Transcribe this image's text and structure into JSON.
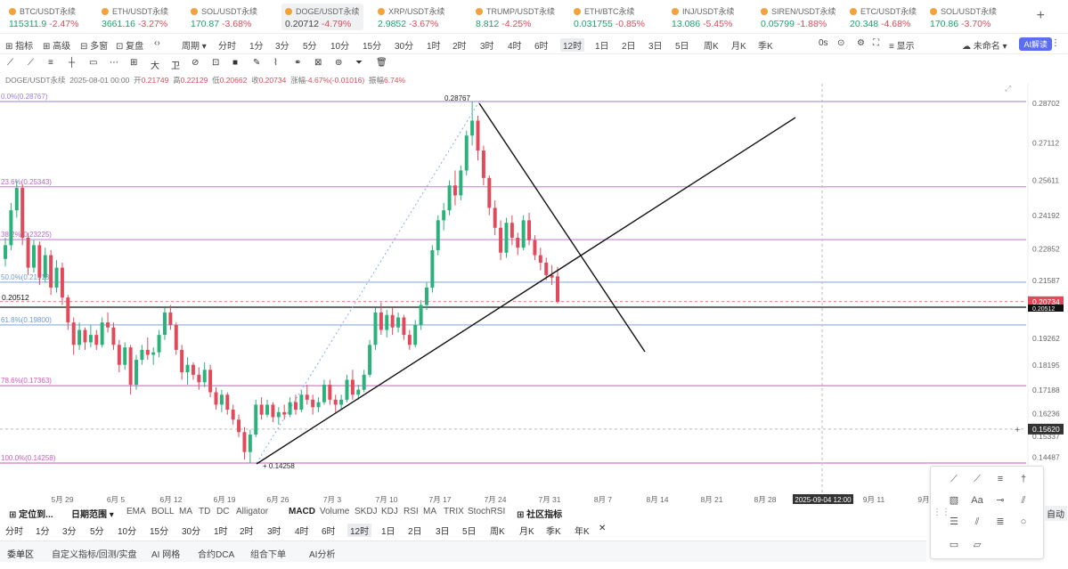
{
  "tickers": [
    {
      "name": "BTC/USDT永续",
      "price": "115311.9",
      "change": "-2.47%",
      "dir": "neg"
    },
    {
      "name": "ETH/USDT永续",
      "price": "3661.16",
      "change": "-3.27%",
      "dir": "neg"
    },
    {
      "name": "SOL/USDT永续",
      "price": "170.87",
      "change": "-3.68%",
      "dir": "neg"
    },
    {
      "name": "DOGE/USDT永续",
      "price": "0.20712",
      "change": "-4.79%",
      "dir": "neg",
      "active": true
    },
    {
      "name": "XRP/USDT永续",
      "price": "2.9852",
      "change": "-3.67%",
      "dir": "neg"
    },
    {
      "name": "TRUMP/USDT永续",
      "price": "8.812",
      "change": "-4.25%",
      "dir": "neg"
    },
    {
      "name": "ETH/BTC永续",
      "price": "0.031755",
      "change": "-0.85%",
      "dir": "neg"
    },
    {
      "name": "INJ/USDT永续",
      "price": "13.086",
      "change": "-5.45%",
      "dir": "neg"
    },
    {
      "name": "SIREN/USDT永续",
      "price": "0.05799",
      "change": "-1.88%",
      "dir": "neg"
    },
    {
      "name": "ETC/USDT永续",
      "price": "20.348",
      "change": "-4.68%",
      "dir": "neg"
    },
    {
      "name": "SOL/USDT永续",
      "price": "170.86",
      "change": "-3.70%",
      "dir": "neg"
    }
  ],
  "toolbar": {
    "items": [
      "指标",
      "高级",
      "多窗",
      "复盘",
      "周期"
    ],
    "periods": [
      "分时",
      "1分",
      "3分",
      "5分",
      "10分",
      "15分",
      "30分",
      "1时",
      "2时",
      "3时",
      "4时",
      "6时",
      "12时",
      "1日",
      "2日",
      "3日",
      "5日",
      "周K",
      "月K",
      "季K"
    ],
    "active_period": "12时",
    "right": [
      "0s",
      "显示",
      "未命名",
      "AI解读"
    ]
  },
  "drawtools": [
    "⟋",
    "⟋",
    "≡",
    "┼",
    "▭",
    "⋯",
    "⊞",
    "大",
    "卫",
    "⊘",
    "⊡",
    "■",
    "✎",
    "⌇",
    "⚭",
    "⊠",
    "⊚",
    "⏷",
    "🗑"
  ],
  "info": {
    "symbol": "DOGE/USDT永续",
    "time": "2025-08-01 00:00",
    "open_label": "开",
    "open": "0.21749",
    "high_label": "高",
    "high": "0.22129",
    "low_label": "低",
    "low": "0.20662",
    "close_label": "收",
    "close": "0.20734",
    "chg_label": "涨幅",
    "chg": "-4.67%(-0.01016)",
    "amp_label": "振幅",
    "amp": "6.74%"
  },
  "chart_data": {
    "type": "candlestick",
    "symbol": "DOGE/USDT永续",
    "interval": "12时",
    "ylim": [
      0.138,
      0.292
    ],
    "price_ticks": [
      "0.28702",
      "0.27112",
      "0.25611",
      "0.24192",
      "0.22852",
      "0.21587",
      "0.20512",
      "0.19262",
      "0.18195",
      "0.17188",
      "0.16236",
      "0.15337",
      "0.14487"
    ],
    "date_ticks": [
      "5月 29",
      "6月 5",
      "6月 12",
      "6月 19",
      "6月 26",
      "7月 3",
      "7月 10",
      "7月 17",
      "7月 24",
      "7月 31",
      "8月 7",
      "8月 14",
      "8月 21",
      "8月 28",
      "2025-09-04 12:00",
      "9月 11",
      "9月"
    ],
    "fib_levels": [
      {
        "label": "0.0%(0.28767)",
        "price": 0.28767,
        "color": "#9b7de0"
      },
      {
        "label": "23.6%(0.25343)",
        "price": 0.25343,
        "color": "#b866c8"
      },
      {
        "label": "38.2%(0.23225)",
        "price": 0.23225,
        "color": "#b866c8"
      },
      {
        "label": "50.0%(0.21513)",
        "price": 0.21513,
        "color": "#6a9ad0"
      },
      {
        "label": "61.8%(0.19800)",
        "price": 0.198,
        "color": "#6a9ad0"
      },
      {
        "label": "78.6%(0.17363)",
        "price": 0.17363,
        "color": "#d05ab8"
      },
      {
        "label": "100.0%(0.14258)",
        "price": 0.14258,
        "color": "#d05ab8"
      }
    ],
    "hline_label": "0.20512",
    "hline_price": 0.20512,
    "current_price": "0.20734",
    "current_price_value": 0.20734,
    "crosshair_price": "0.15620",
    "crosshair_price_value": 0.1562,
    "crosshair_date": "2025-09-04 12:00",
    "high_marker": "0.28767",
    "low_marker": "0.14258",
    "candles": [
      [
        0.2245,
        0.233,
        0.2215,
        0.23
      ],
      [
        0.23,
        0.247,
        0.228,
        0.244
      ],
      [
        0.244,
        0.256,
        0.241,
        0.253
      ],
      [
        0.253,
        0.2545,
        0.23,
        0.233
      ],
      [
        0.233,
        0.235,
        0.218,
        0.221
      ],
      [
        0.221,
        0.232,
        0.219,
        0.23
      ],
      [
        0.23,
        0.2315,
        0.214,
        0.217
      ],
      [
        0.217,
        0.229,
        0.215,
        0.226
      ],
      [
        0.226,
        0.228,
        0.21,
        0.213
      ],
      [
        0.213,
        0.224,
        0.211,
        0.221
      ],
      [
        0.221,
        0.223,
        0.206,
        0.209
      ],
      [
        0.209,
        0.21,
        0.196,
        0.199
      ],
      [
        0.199,
        0.201,
        0.186,
        0.19
      ],
      [
        0.19,
        0.199,
        0.188,
        0.196
      ],
      [
        0.196,
        0.197,
        0.188,
        0.191
      ],
      [
        0.191,
        0.198,
        0.189,
        0.194
      ],
      [
        0.194,
        0.196,
        0.188,
        0.19
      ],
      [
        0.19,
        0.201,
        0.189,
        0.199
      ],
      [
        0.199,
        0.203,
        0.195,
        0.197
      ],
      [
        0.197,
        0.199,
        0.188,
        0.19
      ],
      [
        0.19,
        0.192,
        0.179,
        0.182
      ],
      [
        0.182,
        0.191,
        0.18,
        0.189
      ],
      [
        0.189,
        0.19,
        0.17,
        0.174
      ],
      [
        0.174,
        0.186,
        0.172,
        0.184
      ],
      [
        0.184,
        0.19,
        0.182,
        0.188
      ],
      [
        0.188,
        0.193,
        0.184,
        0.186
      ],
      [
        0.186,
        0.189,
        0.182,
        0.187
      ],
      [
        0.187,
        0.196,
        0.185,
        0.194
      ],
      [
        0.194,
        0.205,
        0.192,
        0.203
      ],
      [
        0.203,
        0.206,
        0.196,
        0.198
      ],
      [
        0.198,
        0.199,
        0.186,
        0.188
      ],
      [
        0.188,
        0.19,
        0.176,
        0.179
      ],
      [
        0.179,
        0.185,
        0.174,
        0.182
      ],
      [
        0.182,
        0.183,
        0.176,
        0.178
      ],
      [
        0.178,
        0.181,
        0.172,
        0.175
      ],
      [
        0.175,
        0.183,
        0.173,
        0.18
      ],
      [
        0.18,
        0.182,
        0.169,
        0.171
      ],
      [
        0.171,
        0.173,
        0.164,
        0.166
      ],
      [
        0.166,
        0.172,
        0.163,
        0.17
      ],
      [
        0.17,
        0.171,
        0.162,
        0.164
      ],
      [
        0.164,
        0.166,
        0.158,
        0.16
      ],
      [
        0.16,
        0.162,
        0.153,
        0.155
      ],
      [
        0.155,
        0.157,
        0.144,
        0.147
      ],
      [
        0.147,
        0.156,
        0.1426,
        0.154
      ],
      [
        0.154,
        0.168,
        0.153,
        0.166
      ],
      [
        0.166,
        0.169,
        0.16,
        0.162
      ],
      [
        0.162,
        0.168,
        0.161,
        0.166
      ],
      [
        0.166,
        0.167,
        0.159,
        0.161
      ],
      [
        0.161,
        0.165,
        0.158,
        0.163
      ],
      [
        0.163,
        0.166,
        0.16,
        0.162
      ],
      [
        0.162,
        0.169,
        0.161,
        0.167
      ],
      [
        0.167,
        0.17,
        0.162,
        0.164
      ],
      [
        0.164,
        0.172,
        0.163,
        0.17
      ],
      [
        0.17,
        0.174,
        0.166,
        0.168
      ],
      [
        0.168,
        0.17,
        0.162,
        0.165
      ],
      [
        0.165,
        0.169,
        0.163,
        0.167
      ],
      [
        0.167,
        0.176,
        0.166,
        0.174
      ],
      [
        0.174,
        0.176,
        0.166,
        0.168
      ],
      [
        0.168,
        0.17,
        0.163,
        0.166
      ],
      [
        0.166,
        0.17,
        0.164,
        0.168
      ],
      [
        0.168,
        0.178,
        0.167,
        0.176
      ],
      [
        0.176,
        0.18,
        0.168,
        0.17
      ],
      [
        0.17,
        0.174,
        0.168,
        0.172
      ],
      [
        0.172,
        0.18,
        0.171,
        0.178
      ],
      [
        0.178,
        0.192,
        0.177,
        0.19
      ],
      [
        0.19,
        0.205,
        0.188,
        0.203
      ],
      [
        0.203,
        0.207,
        0.194,
        0.196
      ],
      [
        0.196,
        0.204,
        0.193,
        0.202
      ],
      [
        0.202,
        0.205,
        0.194,
        0.197
      ],
      [
        0.197,
        0.203,
        0.195,
        0.201
      ],
      [
        0.201,
        0.202,
        0.192,
        0.194
      ],
      [
        0.194,
        0.196,
        0.188,
        0.19
      ],
      [
        0.19,
        0.2,
        0.189,
        0.198
      ],
      [
        0.198,
        0.208,
        0.196,
        0.206
      ],
      [
        0.206,
        0.215,
        0.204,
        0.213
      ],
      [
        0.213,
        0.23,
        0.211,
        0.228
      ],
      [
        0.228,
        0.242,
        0.226,
        0.24
      ],
      [
        0.24,
        0.247,
        0.236,
        0.244
      ],
      [
        0.244,
        0.256,
        0.242,
        0.254
      ],
      [
        0.254,
        0.26,
        0.246,
        0.25
      ],
      [
        0.25,
        0.262,
        0.248,
        0.26
      ],
      [
        0.26,
        0.276,
        0.258,
        0.274
      ],
      [
        0.274,
        0.2877,
        0.27,
        0.28
      ],
      [
        0.28,
        0.282,
        0.264,
        0.268
      ],
      [
        0.268,
        0.27,
        0.254,
        0.257
      ],
      [
        0.257,
        0.258,
        0.242,
        0.245
      ],
      [
        0.245,
        0.248,
        0.234,
        0.237
      ],
      [
        0.237,
        0.24,
        0.224,
        0.227
      ],
      [
        0.227,
        0.241,
        0.225,
        0.239
      ],
      [
        0.239,
        0.242,
        0.23,
        0.233
      ],
      [
        0.233,
        0.235,
        0.226,
        0.229
      ],
      [
        0.229,
        0.242,
        0.228,
        0.24
      ],
      [
        0.24,
        0.243,
        0.23,
        0.232
      ],
      [
        0.232,
        0.234,
        0.224,
        0.226
      ],
      [
        0.226,
        0.229,
        0.22,
        0.223
      ],
      [
        0.223,
        0.225,
        0.216,
        0.218
      ],
      [
        0.218,
        0.222,
        0.214,
        0.217
      ],
      [
        0.2175,
        0.2213,
        0.2066,
        0.2073
      ]
    ],
    "colors": {
      "up": "#2bb27a",
      "down": "#e04a5a"
    }
  },
  "indicators": {
    "locate": "定位到...",
    "range": "日期范围",
    "main": [
      "EMA",
      "BOLL",
      "MA",
      "TD",
      "DC",
      "Alligator"
    ],
    "sub": [
      "MACD",
      "Volume",
      "SKDJ",
      "KDJ",
      "RSI",
      "MA",
      "TRIX",
      "StochRSI"
    ],
    "community": "社区指标"
  },
  "timeframes": [
    "分时",
    "1分",
    "3分",
    "5分",
    "10分",
    "15分",
    "30分",
    "1时",
    "2时",
    "3时",
    "4时",
    "6时",
    "12时",
    "1日",
    "2日",
    "3日",
    "5日",
    "周K",
    "月K",
    "季K",
    "年K",
    "✕"
  ],
  "active_timeframe": "12时",
  "tabs": [
    "委单区",
    "自定义指标/回测/实盘",
    "AI 网格",
    "合约DCA",
    "组合下单",
    "AI分析"
  ],
  "autoscale": "自动"
}
